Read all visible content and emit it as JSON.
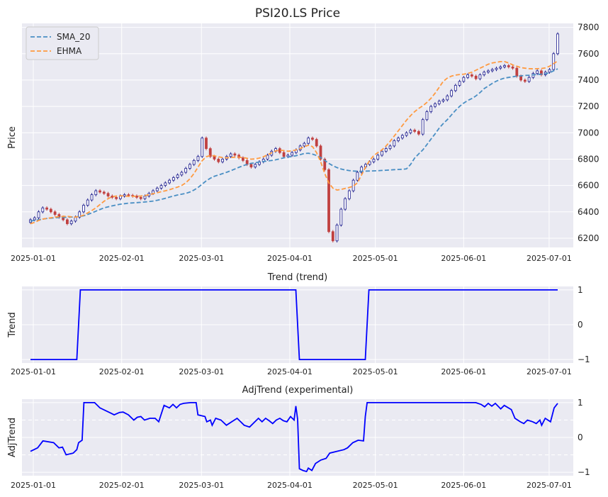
{
  "chart_data": [
    {
      "type": "candlestick",
      "title": "PSI20.LS Price",
      "ylabel": "Price",
      "ylim": [
        6130,
        7830
      ],
      "yticks": [
        6200,
        6400,
        6600,
        6800,
        7000,
        7200,
        7400,
        7600,
        7800
      ],
      "xticks": [
        "2025-01-01",
        "2025-02-01",
        "2025-03-01",
        "2025-04-01",
        "2025-05-01",
        "2025-06-01",
        "2025-07-01"
      ],
      "legend": {
        "position": "top-left",
        "entries": [
          "SMA_20",
          "EHMA"
        ]
      },
      "colors": {
        "up": "#1f1f8f",
        "down": "#c04040",
        "sma": "#4a8fc4",
        "ehma": "#ff9a40"
      },
      "x_start": "2024-12-31",
      "close": [
        6340,
        6355,
        6400,
        6430,
        6420,
        6400,
        6380,
        6360,
        6340,
        6310,
        6330,
        6360,
        6400,
        6450,
        6490,
        6530,
        6560,
        6550,
        6540,
        6520,
        6510,
        6500,
        6520,
        6530,
        6525,
        6520,
        6510,
        6500,
        6520,
        6540,
        6560,
        6580,
        6600,
        6620,
        6640,
        6660,
        6680,
        6700,
        6730,
        6760,
        6790,
        6820,
        6960,
        6880,
        6820,
        6800,
        6780,
        6800,
        6820,
        6840,
        6830,
        6810,
        6790,
        6760,
        6740,
        6760,
        6780,
        6800,
        6830,
        6860,
        6880,
        6850,
        6820,
        6830,
        6850,
        6870,
        6900,
        6920,
        6960,
        6950,
        6900,
        6800,
        6720,
        6250,
        6180,
        6300,
        6420,
        6500,
        6560,
        6640,
        6700,
        6740,
        6760,
        6780,
        6800,
        6830,
        6860,
        6880,
        6900,
        6940,
        6960,
        6980,
        7000,
        7020,
        7010,
        6990,
        7100,
        7160,
        7200,
        7220,
        7240,
        7250,
        7280,
        7320,
        7360,
        7390,
        7420,
        7440,
        7430,
        7410,
        7440,
        7460,
        7470,
        7480,
        7490,
        7500,
        7510,
        7500,
        7490,
        7430,
        7400,
        7390,
        7420,
        7450,
        7470,
        7440,
        7460,
        7480,
        7600,
        7750
      ],
      "sma_20": [
        6330,
        6335,
        6340,
        6345,
        6350,
        6352,
        6355,
        6357,
        6358,
        6359,
        6360,
        6362,
        6365,
        6370,
        6380,
        6392,
        6405,
        6418,
        6430,
        6438,
        6445,
        6452,
        6458,
        6462,
        6466,
        6468,
        6470,
        6472,
        6475,
        6478,
        6482,
        6488,
        6495,
        6503,
        6512,
        6520,
        6528,
        6534,
        6540,
        6550,
        6565,
        6585,
        6610,
        6635,
        6655,
        6670,
        6680,
        6690,
        6700,
        6712,
        6725,
        6738,
        6750,
        6760,
        6768,
        6773,
        6778,
        6782,
        6786,
        6790,
        6795,
        6802,
        6810,
        6816,
        6820,
        6826,
        6834,
        6843,
        6845,
        6838,
        6828,
        6812,
        6790,
        6768,
        6750,
        6736,
        6725,
        6718,
        6713,
        6710,
        6708,
        6708,
        6709,
        6710,
        6711,
        6712,
        6714,
        6716,
        6718,
        6720,
        6722,
        6723,
        6726,
        6760,
        6808,
        6840,
        6870,
        6910,
        6952,
        6992,
        7035,
        7070,
        7100,
        7135,
        7170,
        7200,
        7225,
        7245,
        7260,
        7280,
        7305,
        7335,
        7355,
        7375,
        7392,
        7405,
        7415,
        7420,
        7425,
        7430,
        7432,
        7435,
        7437,
        7440,
        7442,
        7445,
        7448,
        7455,
        7470,
        7485
      ],
      "ehma": [
        6310,
        6320,
        6335,
        6345,
        6350,
        6355,
        6360,
        6363,
        6365,
        6366,
        6362,
        6360,
        6365,
        6375,
        6392,
        6410,
        6430,
        6455,
        6480,
        6500,
        6515,
        6520,
        6522,
        6520,
        6518,
        6518,
        6519,
        6520,
        6523,
        6530,
        6538,
        6545,
        6553,
        6560,
        6568,
        6578,
        6588,
        6600,
        6620,
        6650,
        6690,
        6740,
        6788,
        6818,
        6828,
        6825,
        6818,
        6812,
        6810,
        6812,
        6815,
        6815,
        6812,
        6806,
        6800,
        6802,
        6808,
        6818,
        6832,
        6848,
        6862,
        6868,
        6865,
        6860,
        6862,
        6870,
        6880,
        6895,
        6905,
        6895,
        6850,
        6780,
        6690,
        6620,
        6580,
        6565,
        6570,
        6578,
        6585,
        6595,
        6620,
        6680,
        6740,
        6790,
        6828,
        6850,
        6870,
        6900,
        6935,
        6975,
        7015,
        7055,
        7095,
        7130,
        7160,
        7185,
        7205,
        7230,
        7262,
        7300,
        7345,
        7390,
        7415,
        7430,
        7438,
        7442,
        7445,
        7450,
        7460,
        7475,
        7490,
        7505,
        7520,
        7530,
        7535,
        7540,
        7540,
        7530,
        7515,
        7505,
        7495,
        7490,
        7487,
        7485,
        7486,
        7488,
        7492,
        7505,
        7525,
        7545
      ]
    },
    {
      "type": "line",
      "title": "Trend (trend)",
      "ylabel": "Trend",
      "ylim": [
        -1.1,
        1.1
      ],
      "yticks": [
        -1,
        0,
        1
      ],
      "xticks": [
        "2025-01-01",
        "2025-02-01",
        "2025-03-01",
        "2025-04-01",
        "2025-05-01",
        "2025-06-01",
        "2025-07-01"
      ],
      "color": "#0000ff",
      "series": [
        {
          "values": [
            [
              0,
              -1
            ],
            [
              26,
              -1
            ],
            [
              28,
              1
            ],
            [
              149,
              1
            ],
            [
              151,
              -1
            ],
            [
              188,
              -1
            ],
            [
              190,
              1
            ],
            [
              296,
              1
            ]
          ]
        }
      ]
    },
    {
      "type": "line",
      "title": "AdjTrend (experimental)",
      "ylabel": "AdjTrend",
      "ylim": [
        -1.1,
        1.1
      ],
      "yticks": [
        -1,
        0,
        1
      ],
      "reference_lines": [
        0.5,
        -0.5
      ],
      "xticks": [
        "2025-01-01",
        "2025-02-01",
        "2025-03-01",
        "2025-04-01",
        "2025-05-01",
        "2025-06-01",
        "2025-07-01"
      ],
      "color": "#0000ff",
      "series": [
        {
          "values": [
            [
              0,
              -0.4
            ],
            [
              4,
              -0.3
            ],
            [
              7,
              -0.1
            ],
            [
              13,
              -0.15
            ],
            [
              16,
              -0.3
            ],
            [
              18,
              -0.28
            ],
            [
              20,
              -0.5
            ],
            [
              24,
              -0.45
            ],
            [
              26,
              -0.35
            ],
            [
              27,
              -0.15
            ],
            [
              29,
              -0.08
            ],
            [
              30,
              1.0
            ],
            [
              36,
              1.0
            ],
            [
              39,
              0.85
            ],
            [
              45,
              0.7
            ],
            [
              47,
              0.65
            ],
            [
              50,
              0.72
            ],
            [
              52,
              0.73
            ],
            [
              55,
              0.65
            ],
            [
              58,
              0.5
            ],
            [
              60,
              0.58
            ],
            [
              62,
              0.6
            ],
            [
              64,
              0.5
            ],
            [
              67,
              0.55
            ],
            [
              70,
              0.55
            ],
            [
              72,
              0.45
            ],
            [
              75,
              0.92
            ],
            [
              78,
              0.85
            ],
            [
              80,
              0.95
            ],
            [
              82,
              0.85
            ],
            [
              84,
              0.95
            ],
            [
              86,
              0.98
            ],
            [
              90,
              1.0
            ],
            [
              93,
              1.0
            ],
            [
              94,
              0.65
            ],
            [
              98,
              0.6
            ],
            [
              99,
              0.45
            ],
            [
              101,
              0.5
            ],
            [
              102,
              0.35
            ],
            [
              104,
              0.55
            ],
            [
              107,
              0.5
            ],
            [
              110,
              0.35
            ],
            [
              113,
              0.45
            ],
            [
              116,
              0.55
            ],
            [
              118,
              0.45
            ],
            [
              120,
              0.35
            ],
            [
              123,
              0.3
            ],
            [
              126,
              0.45
            ],
            [
              128,
              0.55
            ],
            [
              130,
              0.45
            ],
            [
              132,
              0.55
            ],
            [
              134,
              0.48
            ],
            [
              136,
              0.4
            ],
            [
              138,
              0.5
            ],
            [
              140,
              0.55
            ],
            [
              142,
              0.48
            ],
            [
              144,
              0.45
            ],
            [
              146,
              0.6
            ],
            [
              147,
              0.55
            ],
            [
              148,
              0.5
            ],
            [
              149,
              0.9
            ],
            [
              150,
              0.52
            ],
            [
              151,
              -0.9
            ],
            [
              153,
              -0.95
            ],
            [
              155,
              -0.98
            ],
            [
              156,
              -0.88
            ],
            [
              158,
              -0.95
            ],
            [
              160,
              -0.75
            ],
            [
              163,
              -0.65
            ],
            [
              166,
              -0.6
            ],
            [
              168,
              -0.45
            ],
            [
              172,
              -0.4
            ],
            [
              176,
              -0.35
            ],
            [
              178,
              -0.3
            ],
            [
              181,
              -0.15
            ],
            [
              184,
              -0.08
            ],
            [
              187,
              -0.1
            ],
            [
              188,
              0.6
            ],
            [
              189,
              1.0
            ],
            [
              250,
              1.0
            ],
            [
              253,
              0.95
            ],
            [
              255,
              0.88
            ],
            [
              257,
              0.98
            ],
            [
              259,
              0.9
            ],
            [
              261,
              0.98
            ],
            [
              264,
              0.82
            ],
            [
              266,
              0.92
            ],
            [
              270,
              0.8
            ],
            [
              272,
              0.55
            ],
            [
              275,
              0.45
            ],
            [
              277,
              0.4
            ],
            [
              279,
              0.5
            ],
            [
              282,
              0.45
            ],
            [
              284,
              0.4
            ],
            [
              286,
              0.5
            ],
            [
              287,
              0.35
            ],
            [
              289,
              0.55
            ],
            [
              292,
              0.45
            ],
            [
              294,
              0.85
            ],
            [
              296,
              0.98
            ]
          ]
        }
      ]
    }
  ]
}
